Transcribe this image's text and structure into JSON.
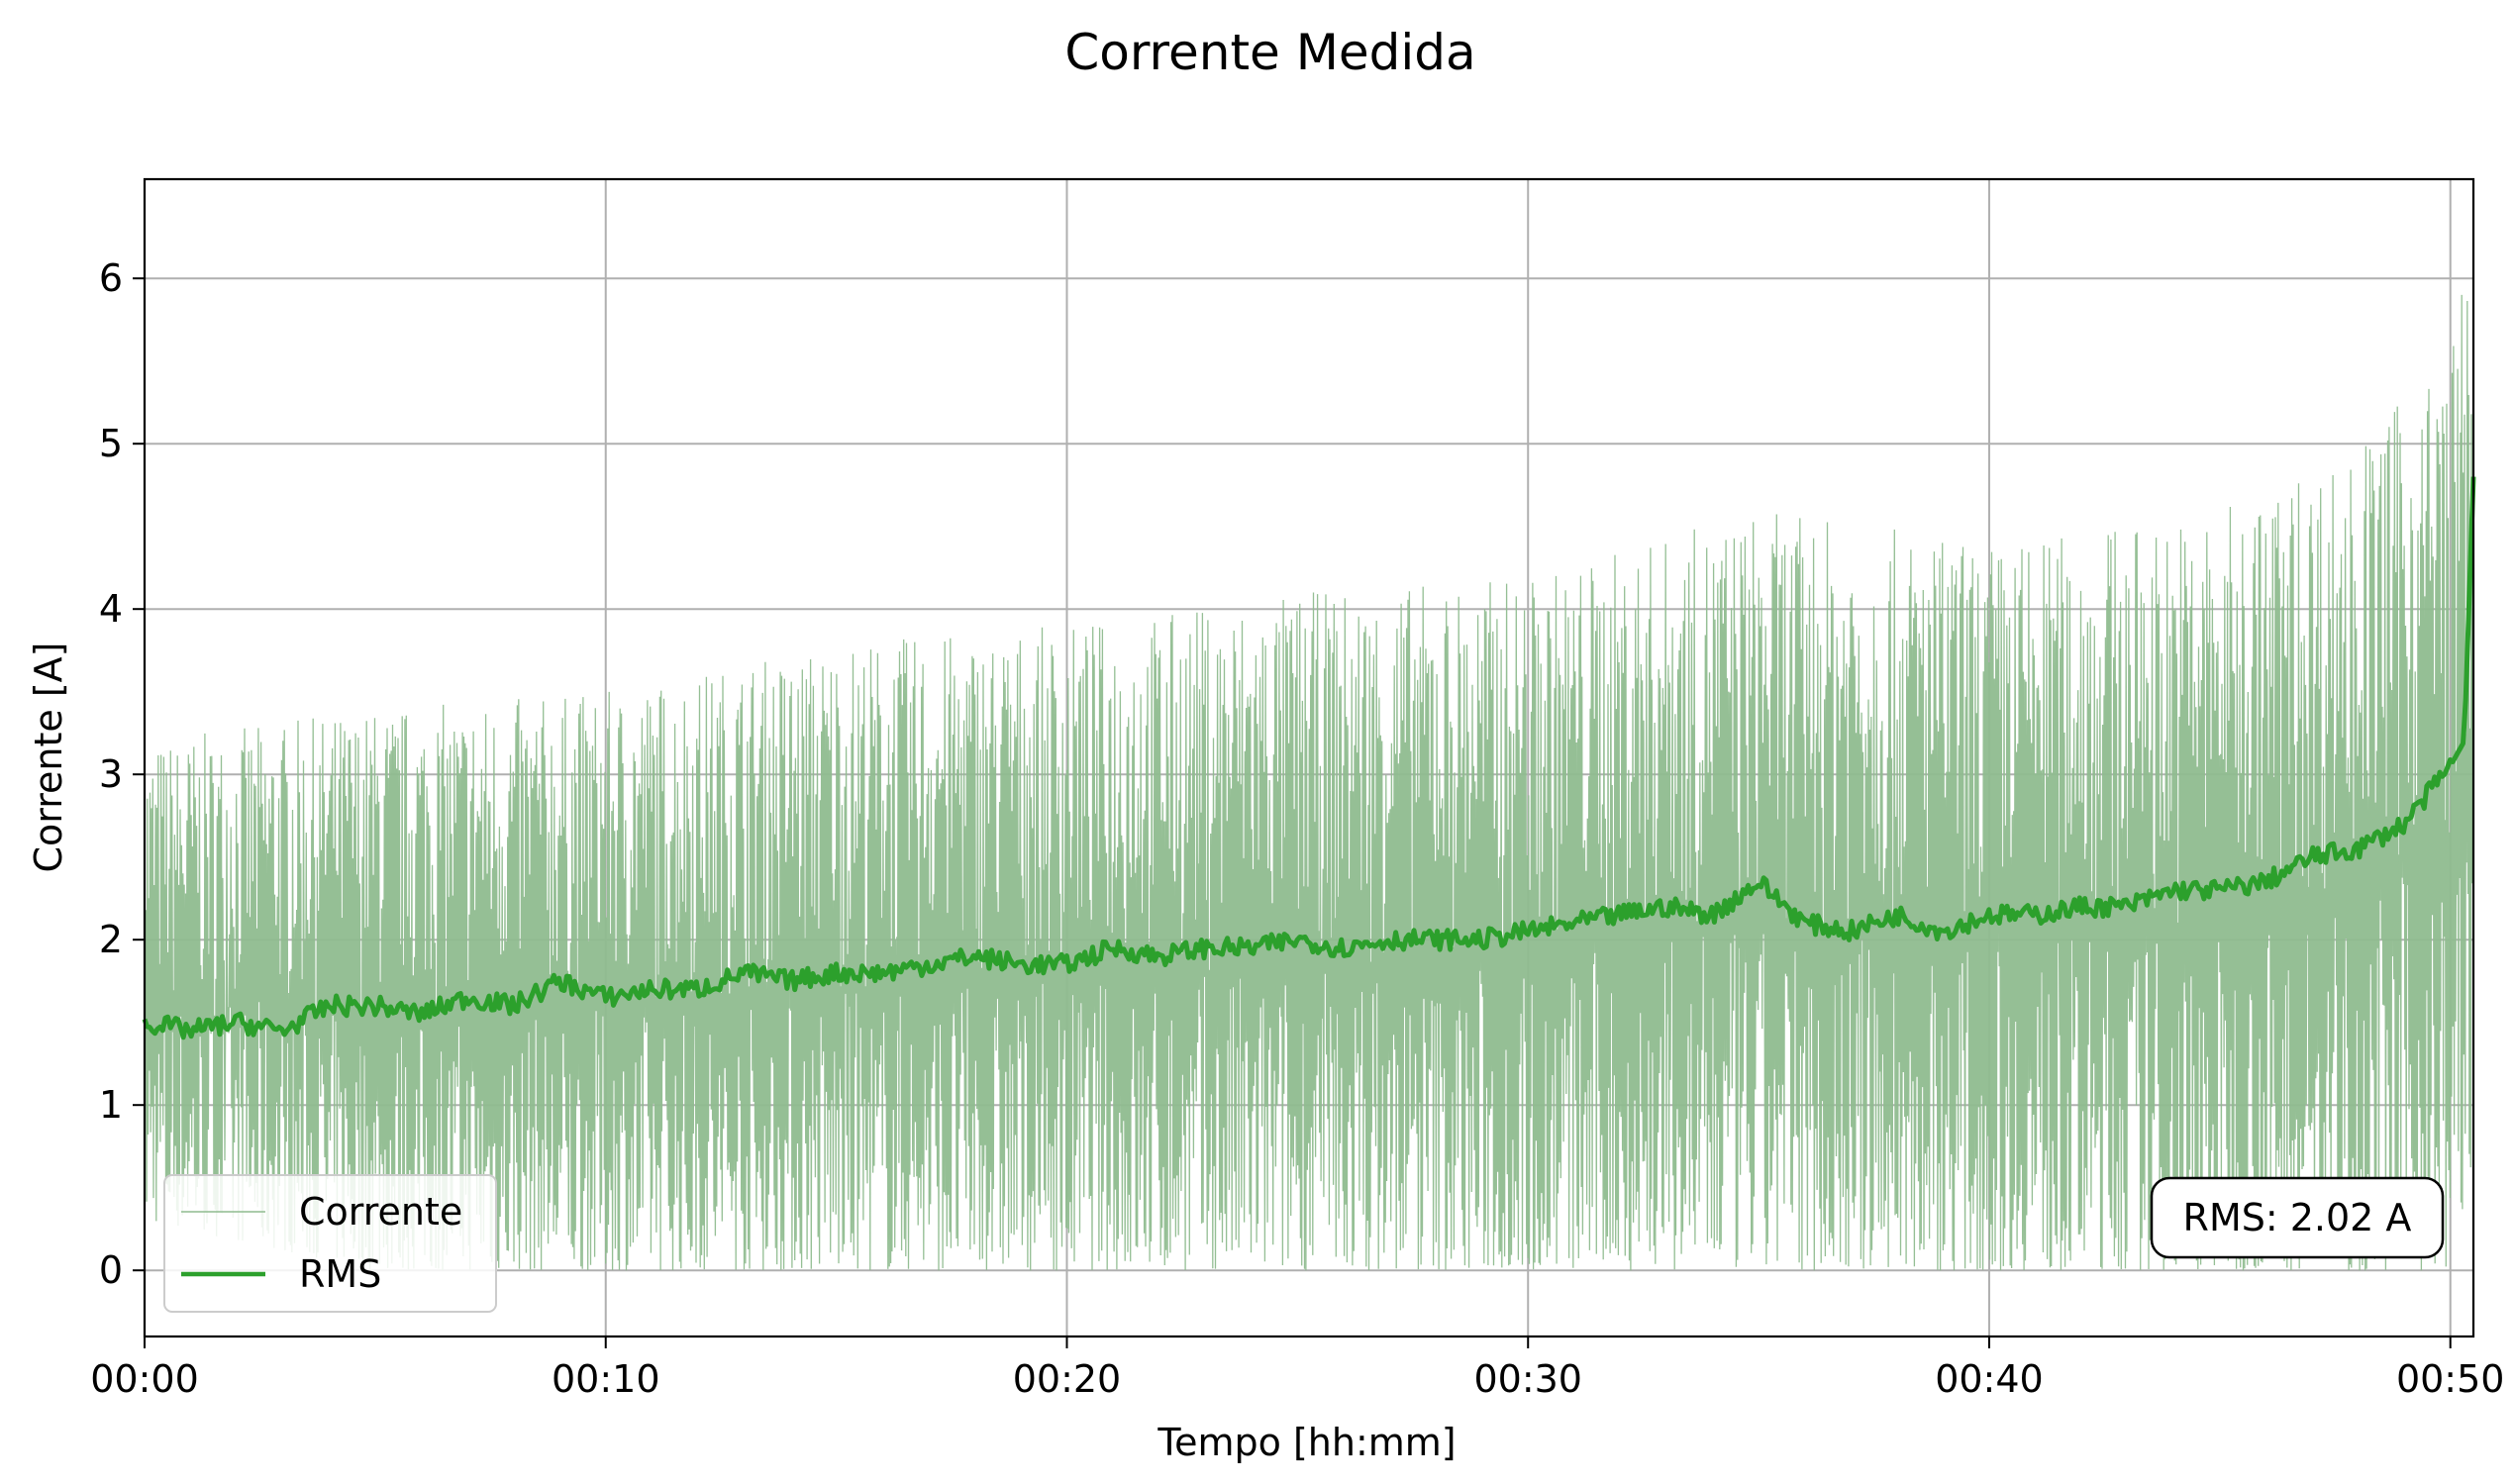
{
  "chart_data": {
    "type": "line",
    "title": "Corrente Medida",
    "xlabel": "Tempo [hh:mm]",
    "ylabel": "Corrente [A]",
    "xlim": [
      0,
      50.5
    ],
    "ylim": [
      -0.4,
      6.6
    ],
    "x_unit": "minutes",
    "x_ticks": [
      {
        "value": 0,
        "label": "00:00"
      },
      {
        "value": 10,
        "label": "00:10"
      },
      {
        "value": 20,
        "label": "00:20"
      },
      {
        "value": 30,
        "label": "00:30"
      },
      {
        "value": 40,
        "label": "00:40"
      },
      {
        "value": 50,
        "label": "00:50"
      }
    ],
    "y_ticks": [
      0,
      1,
      2,
      3,
      4,
      5,
      6
    ],
    "grid": true,
    "legend": {
      "placement": "lower-left",
      "entries": [
        {
          "label": "Corrente",
          "color": "#8fbc8f"
        },
        {
          "label": "RMS",
          "color": "#2ca02c"
        }
      ]
    },
    "annotation": "RMS: 2.02 A",
    "series": [
      {
        "name": "Corrente",
        "color": "#8fbc8f",
        "style": "thin-oscillating",
        "envelope": {
          "x": [
            0,
            5,
            10,
            15,
            20,
            25,
            30,
            35,
            40,
            45,
            48,
            50,
            50.5
          ],
          "peak_high": [
            3.2,
            3.4,
            3.5,
            3.8,
            3.9,
            4.1,
            4.2,
            4.6,
            4.4,
            4.6,
            5.0,
            5.6,
            6.3
          ],
          "peak_low": [
            0.3,
            0.0,
            0.0,
            0.0,
            0.0,
            0.0,
            0.0,
            0.0,
            0.0,
            0.0,
            0.0,
            0.0,
            0.5
          ]
        }
      },
      {
        "name": "RMS",
        "color": "#2ca02c",
        "x": [
          0,
          1,
          2,
          3,
          4,
          5,
          6,
          7,
          8,
          9,
          10,
          11,
          12,
          13,
          14,
          15,
          16,
          17,
          18,
          19,
          20,
          21,
          22,
          23,
          24,
          25,
          26,
          27,
          28,
          29,
          30,
          31,
          32,
          33,
          34,
          35,
          36,
          37,
          38,
          39,
          40,
          41,
          42,
          43,
          44,
          45,
          46,
          47,
          48,
          49,
          50,
          50.3,
          50.5
        ],
        "y": [
          1.5,
          1.45,
          1.5,
          1.45,
          1.6,
          1.6,
          1.55,
          1.65,
          1.6,
          1.75,
          1.65,
          1.7,
          1.7,
          1.8,
          1.75,
          1.8,
          1.8,
          1.85,
          1.9,
          1.85,
          1.85,
          1.95,
          1.9,
          1.95,
          1.95,
          2.0,
          1.95,
          2.0,
          2.0,
          2.0,
          2.05,
          2.1,
          2.15,
          2.2,
          2.15,
          2.35,
          2.1,
          2.05,
          2.15,
          2.05,
          2.15,
          2.15,
          2.2,
          2.2,
          2.3,
          2.3,
          2.35,
          2.5,
          2.55,
          2.7,
          3.05,
          3.2,
          4.8
        ]
      }
    ]
  }
}
